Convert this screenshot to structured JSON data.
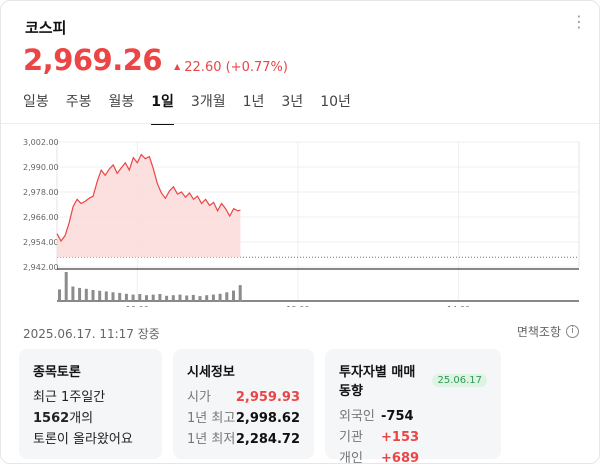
{
  "header": {
    "title": "코스피",
    "price": "2,969.26",
    "change_arrow": "▲",
    "change": "22.60 (+0.77%)",
    "more_icon": "more-vertical-icon"
  },
  "tabs": [
    {
      "label": "일봉",
      "active": false
    },
    {
      "label": "주봉",
      "active": false
    },
    {
      "label": "월봉",
      "active": false
    },
    {
      "label": "1일",
      "active": true
    },
    {
      "label": "3개월",
      "active": false
    },
    {
      "label": "1년",
      "active": false
    },
    {
      "label": "3년",
      "active": false
    },
    {
      "label": "10년",
      "active": false
    }
  ],
  "colors": {
    "up": "#eb4545",
    "area_fill": "#fbdada",
    "volume": "#8c8c8c"
  },
  "chart_data": {
    "type": "area",
    "title": "",
    "xlabel": "",
    "ylabel": "",
    "ylim": [
      2942,
      3002
    ],
    "y_ticks": [
      "3,002.00",
      "2,990.00",
      "2,978.00",
      "2,966.00",
      "2,954.00",
      "2,942.00"
    ],
    "y_tick_values": [
      3002,
      2990,
      2978,
      2966,
      2954,
      2942
    ],
    "x_ticks": [
      "10:00",
      "12:00",
      "14:00"
    ],
    "x_tick_times": [
      "10:00",
      "12:00",
      "14:00"
    ],
    "x_range": [
      "09:00",
      "15:30"
    ],
    "prev_close": 2946.66,
    "grid": true,
    "series": [
      {
        "type": "line",
        "times": [
          "09:00",
          "09:03",
          "09:06",
          "09:09",
          "09:12",
          "09:15",
          "09:18",
          "09:21",
          "09:24",
          "09:27",
          "09:30",
          "09:33",
          "09:36",
          "09:39",
          "09:42",
          "09:45",
          "09:48",
          "09:51",
          "09:54",
          "09:57",
          "10:00",
          "10:03",
          "10:06",
          "10:09",
          "10:12",
          "10:15",
          "10:18",
          "10:21",
          "10:24",
          "10:27",
          "10:30",
          "10:33",
          "10:36",
          "10:39",
          "10:42",
          "10:45",
          "10:48",
          "10:51",
          "10:54",
          "10:57",
          "11:00",
          "11:03",
          "11:06",
          "11:09",
          "11:12",
          "11:15",
          "11:17"
        ],
        "values": [
          2958.0,
          2954.5,
          2957.0,
          2963.0,
          2971.0,
          2974.5,
          2972.5,
          2973.5,
          2975.0,
          2976.0,
          2983.0,
          2988.5,
          2986.0,
          2989.0,
          2991.0,
          2987.0,
          2989.5,
          2992.0,
          2988.5,
          2994.5,
          2992.0,
          2996.0,
          2994.0,
          2995.0,
          2989.0,
          2982.0,
          2977.5,
          2975.0,
          2978.5,
          2980.5,
          2977.0,
          2978.0,
          2975.5,
          2977.5,
          2974.5,
          2976.0,
          2972.5,
          2974.5,
          2971.5,
          2973.0,
          2969.0,
          2972.5,
          2970.0,
          2966.5,
          2970.0,
          2969.0,
          2969.26
        ]
      }
    ],
    "volume": {
      "times": [
        "09:00",
        "09:05",
        "09:10",
        "09:15",
        "09:20",
        "09:25",
        "09:30",
        "09:35",
        "09:40",
        "09:45",
        "09:50",
        "09:55",
        "10:00",
        "10:05",
        "10:10",
        "10:15",
        "10:20",
        "10:25",
        "10:30",
        "10:35",
        "10:40",
        "10:45",
        "10:50",
        "10:55",
        "11:00",
        "11:05",
        "11:10",
        "11:15"
      ],
      "values": [
        40,
        100,
        50,
        45,
        42,
        38,
        35,
        33,
        30,
        28,
        25,
        22,
        24,
        20,
        22,
        24,
        18,
        20,
        22,
        19,
        21,
        17,
        20,
        22,
        25,
        30,
        36,
        55
      ]
    }
  },
  "footer": {
    "timestamp": "2025.06.17. 11:17 장중",
    "disclaimer": "면책조항",
    "info_icon": "i"
  },
  "panels": {
    "discussion": {
      "title": "종목토론",
      "line1": "최근 1주일간",
      "count": "1562",
      "count_suffix": "개의",
      "line3": "토론이 올라왔어요"
    },
    "market": {
      "title": "시세정보",
      "rows": [
        {
          "label": "시가",
          "value": "2,959.93"
        },
        {
          "label": "1년 최고",
          "value": "2,998.62"
        },
        {
          "label": "1년 최저",
          "value": "2,284.72"
        }
      ]
    },
    "investors": {
      "title": "투자자별 매매동향",
      "badge": "25.06.17",
      "rows": [
        {
          "label": "외국인",
          "value": "-754"
        },
        {
          "label": "기관",
          "value": "+153"
        },
        {
          "label": "개인",
          "value": "+689"
        }
      ]
    }
  }
}
